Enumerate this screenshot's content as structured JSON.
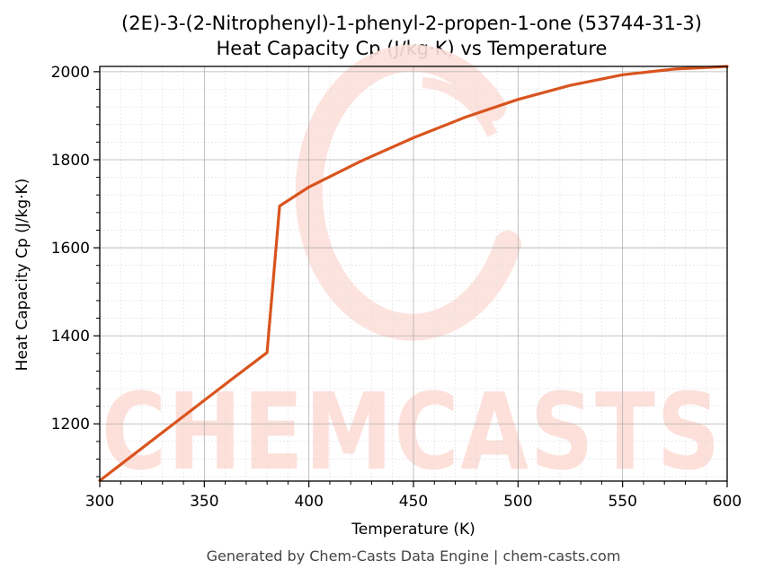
{
  "chart_data": {
    "type": "line",
    "title": "(2E)-3-(2-Nitrophenyl)-1-phenyl-2-propen-1-one (53744-31-3)",
    "subtitle": "Heat Capacity Cp (J/kg·K) vs Temperature",
    "xlabel": "Temperature (K)",
    "ylabel": "Heat Capacity Cp (J/kg·K)",
    "xlim": [
      300,
      600
    ],
    "ylim": [
      1070,
      2012
    ],
    "xticks": [
      300,
      350,
      400,
      450,
      500,
      550,
      600
    ],
    "yticks": [
      1200,
      1400,
      1600,
      1800,
      2000
    ],
    "grid": true,
    "series": [
      {
        "color": "#d9541e",
        "x": [
          300,
          320,
          340,
          360,
          380,
          386,
          400,
          425,
          450,
          475,
          500,
          525,
          550,
          575,
          600
        ],
        "y": [
          1071,
          1144,
          1217,
          1290,
          1362,
          1695,
          1738,
          1797,
          1850,
          1897,
          1937,
          1969,
          1993,
          2006,
          2012
        ]
      }
    ]
  },
  "watermark": {
    "text": "CHEMCASTS",
    "color": "#fde0da"
  },
  "footer": "Generated by Chem-Casts Data Engine | chem-casts.com"
}
